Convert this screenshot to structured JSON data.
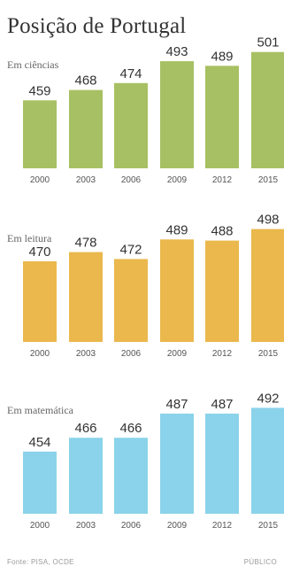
{
  "title": "Posição de Portugal",
  "source": "Fonte: PISA, OCDE",
  "credit": "PÚBLICO",
  "colors": {
    "ciencias": "#a7c063",
    "leitura": "#eab84c",
    "matematica": "#8ad3ea"
  },
  "chart_data": [
    {
      "type": "bar",
      "title": "Em ciências",
      "categories": [
        "2000",
        "2003",
        "2006",
        "2009",
        "2012",
        "2015"
      ],
      "values": [
        459,
        468,
        474,
        493,
        489,
        501
      ],
      "xlabel": "",
      "ylabel": "",
      "ylim": [
        400,
        510
      ]
    },
    {
      "type": "bar",
      "title": "Em leitura",
      "categories": [
        "2000",
        "2003",
        "2006",
        "2009",
        "2012",
        "2015"
      ],
      "values": [
        470,
        478,
        472,
        489,
        488,
        498
      ],
      "xlabel": "",
      "ylabel": "",
      "ylim": [
        400,
        510
      ]
    },
    {
      "type": "bar",
      "title": "Em matemática",
      "categories": [
        "2000",
        "2003",
        "2006",
        "2009",
        "2012",
        "2015"
      ],
      "values": [
        454,
        466,
        466,
        487,
        487,
        492
      ],
      "xlabel": "",
      "ylabel": "",
      "ylim": [
        400,
        510
      ]
    }
  ]
}
